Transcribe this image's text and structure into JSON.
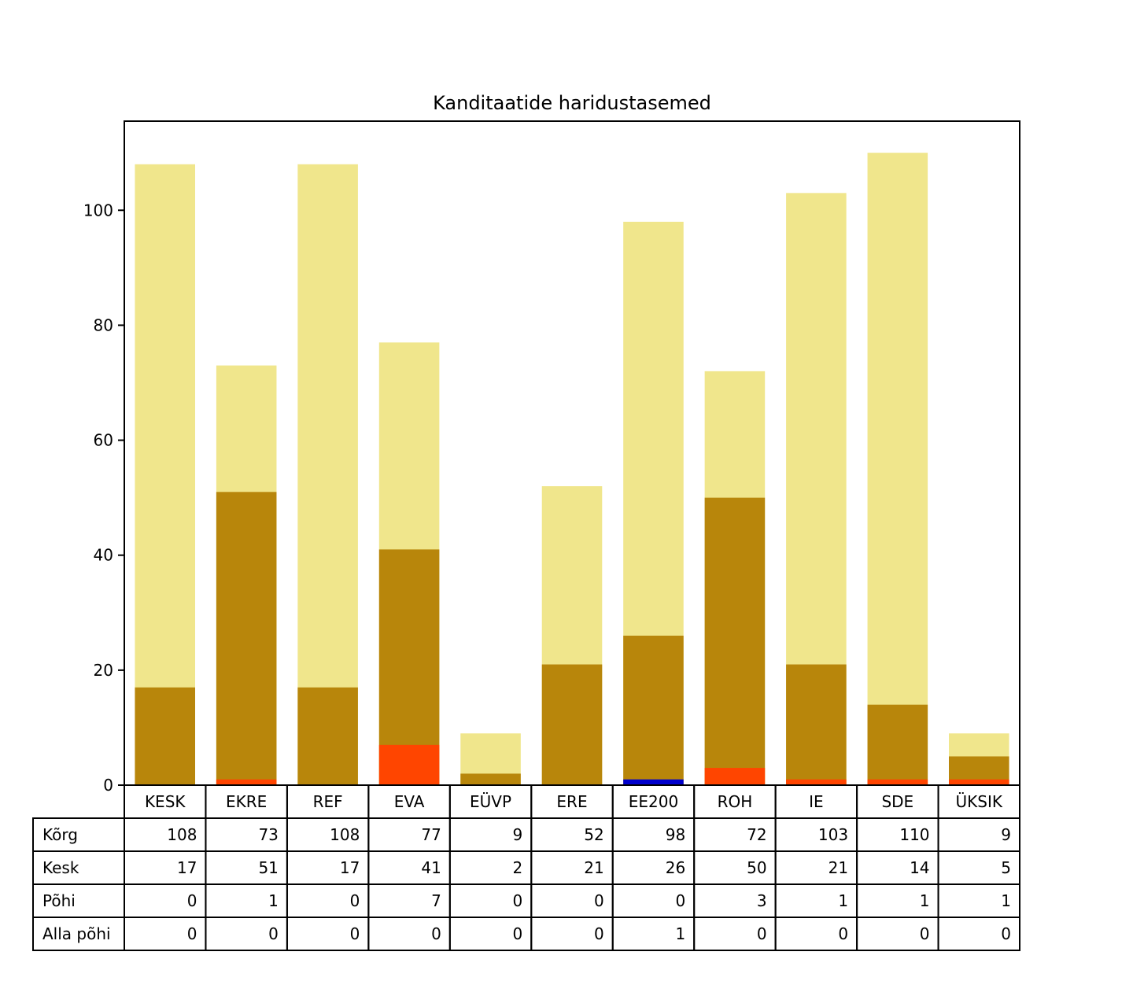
{
  "chart_data": {
    "type": "bar",
    "title": "Kanditaatide haridustasemed",
    "categories": [
      "KESK",
      "EKRE",
      "REF",
      "EVA",
      "EÜVP",
      "ERE",
      "EE200",
      "ROH",
      "IE",
      "SDE",
      "ÜKSIK"
    ],
    "series": [
      {
        "name": "Kõrg",
        "color": "#f0e68c",
        "values": [
          108,
          73,
          108,
          77,
          9,
          52,
          98,
          72,
          103,
          110,
          9
        ]
      },
      {
        "name": "Kesk",
        "color": "#b8860b",
        "values": [
          17,
          51,
          17,
          41,
          2,
          21,
          26,
          50,
          21,
          14,
          5
        ]
      },
      {
        "name": "Põhi",
        "color": "#ff4500",
        "values": [
          0,
          1,
          0,
          7,
          0,
          0,
          0,
          3,
          1,
          1,
          1
        ]
      },
      {
        "name": "Alla põhi",
        "color": "#0000cd",
        "values": [
          0,
          0,
          0,
          0,
          0,
          0,
          1,
          0,
          0,
          0,
          0
        ]
      }
    ],
    "ylim": [
      0,
      115.5
    ],
    "yticks": [
      0,
      20,
      40,
      60,
      80,
      100
    ],
    "xlabel": "",
    "ylabel": "",
    "grid": false,
    "legend": "none",
    "table": "bottom"
  }
}
